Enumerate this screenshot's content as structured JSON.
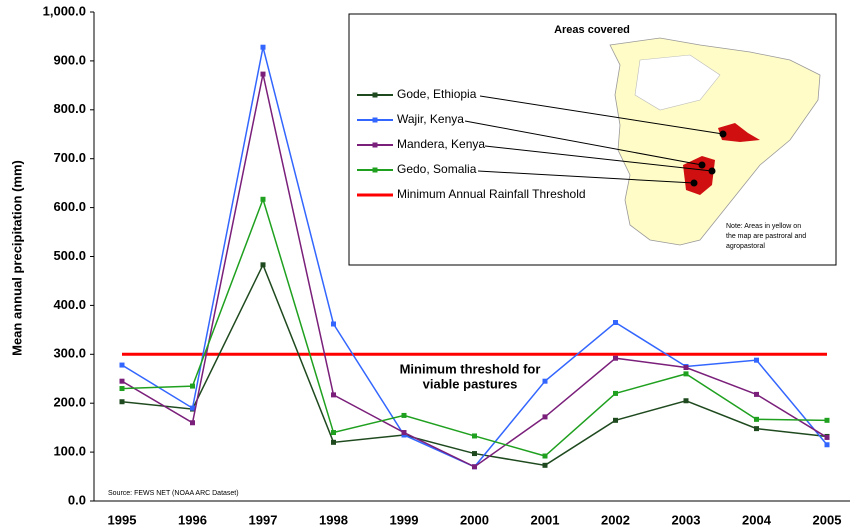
{
  "chart_data": {
    "type": "line",
    "y_label": "Mean annual precipitation (mm)",
    "source": "Source: FEWS NET (NOAA ARC Dataset)",
    "annotation": [
      "Minimum threshold for",
      "viable pastures"
    ],
    "inset_title": "Areas covered",
    "note": [
      "Note: Areas in yellow on",
      "the map are pastroral and",
      "agropastoral"
    ],
    "categories": [
      "1995",
      "1996",
      "1997",
      "1998",
      "1999",
      "2000",
      "2001",
      "2002",
      "2003",
      "2004",
      "2005"
    ],
    "series": [
      {
        "name": "Gode, Ethiopia",
        "color": "#1f4a1f",
        "values": [
          203,
          188,
          483,
          120,
          135,
          97,
          73,
          165,
          205,
          148,
          132
        ]
      },
      {
        "name": "Wajir, Kenya",
        "color": "#3366ff",
        "values": [
          278,
          190,
          928,
          362,
          135,
          70,
          245,
          365,
          275,
          288,
          115
        ]
      },
      {
        "name": "Mandera, Kenya",
        "color": "#7a1f7a",
        "values": [
          245,
          160,
          873,
          217,
          140,
          70,
          172,
          292,
          273,
          218,
          130
        ]
      },
      {
        "name": "Gedo, Somalia",
        "color": "#1fa01f",
        "values": [
          230,
          235,
          617,
          140,
          175,
          133,
          92,
          220,
          260,
          167,
          165
        ]
      }
    ],
    "threshold": {
      "name": "Minimum Annual Rainfall Threshold",
      "value": 300,
      "color": "#ff0000"
    },
    "ylim": [
      0,
      1000
    ],
    "yticks": [
      {
        "value": 0,
        "label": "0.0"
      },
      {
        "value": 100,
        "label": "100.0"
      },
      {
        "value": 200,
        "label": "200.0"
      },
      {
        "value": 300,
        "label": "300.0"
      },
      {
        "value": 400,
        "label": "400.0"
      },
      {
        "value": 500,
        "label": "500.0"
      },
      {
        "value": 600,
        "label": "600.0"
      },
      {
        "value": 700,
        "label": "700.0"
      },
      {
        "value": 800,
        "label": "800.0"
      },
      {
        "value": 900,
        "label": "900.0"
      },
      {
        "value": 1000,
        "label": "1,000.0"
      }
    ],
    "grid": false
  }
}
